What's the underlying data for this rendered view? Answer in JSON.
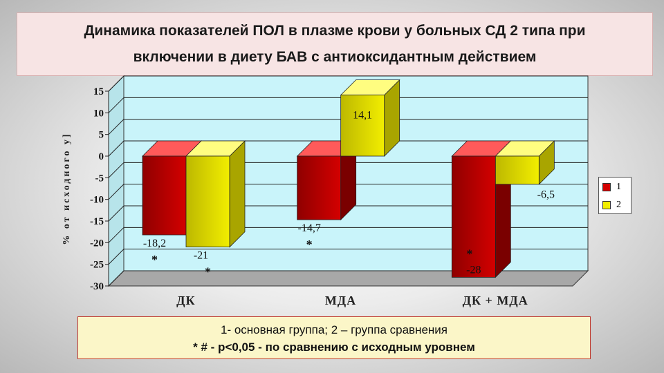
{
  "title": "Динамика показателей ПОЛ в плазме крови у больных СД 2 типа при включении в диету БАВ с антиоксидантным действием",
  "footnote": {
    "line1": "1- основная группа; 2 – группа сравнения",
    "line2": "* # - p<0,05 - по сравнению с исходным уровнем"
  },
  "colors": {
    "series1": "#d40000",
    "series2": "#f2ee00",
    "plot_bg": "#c9f4fa"
  },
  "chart_data": {
    "type": "bar",
    "categories": [
      "ДК",
      "МДА",
      "ДК + МДА"
    ],
    "series": [
      {
        "name": "1",
        "values": [
          -18.2,
          -14.7,
          -28
        ],
        "labels": [
          "-18,2",
          "-14,7",
          "-28"
        ],
        "marks": [
          "*",
          "*",
          "*"
        ]
      },
      {
        "name": "2",
        "values": [
          -21,
          14.1,
          -6.5
        ],
        "labels": [
          "-21",
          "14,1",
          "-6,5"
        ],
        "marks": [
          "*",
          "",
          ""
        ]
      }
    ],
    "ylabel": "% от исходного у]",
    "ylim": [
      -30,
      15
    ],
    "yticks": [
      15,
      10,
      5,
      0,
      -5,
      -10,
      -15,
      -20,
      -25,
      -30
    ],
    "grid": true,
    "legend": "right"
  }
}
